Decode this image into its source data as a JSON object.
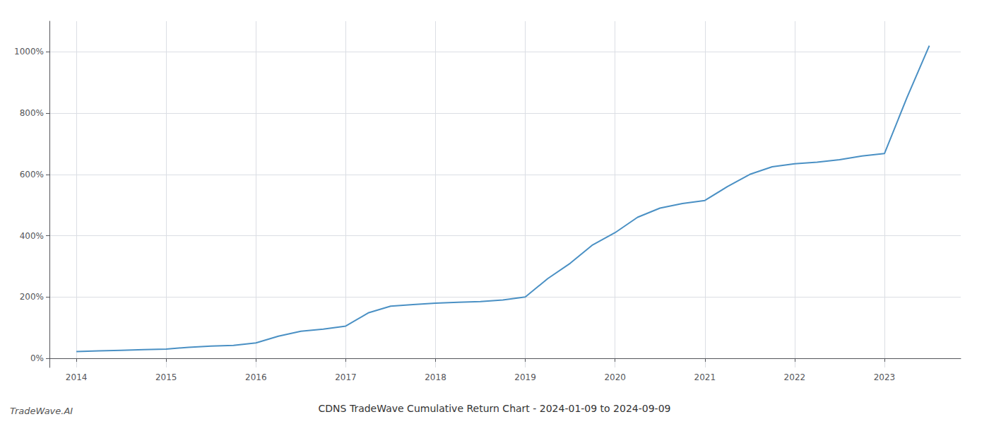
{
  "chart_data": {
    "type": "line",
    "title": "CDNS TradeWave Cumulative Return Chart - 2024-01-09 to 2024-09-09",
    "annotations": [
      "TradeWave.AI"
    ],
    "x": [
      2014.0,
      2014.25,
      2014.5,
      2014.75,
      2015.0,
      2015.25,
      2015.5,
      2015.75,
      2016.0,
      2016.25,
      2016.5,
      2016.75,
      2017.0,
      2017.25,
      2017.5,
      2017.75,
      2018.0,
      2018.25,
      2018.5,
      2018.75,
      2019.0,
      2019.25,
      2019.5,
      2019.75,
      2020.0,
      2020.25,
      2020.5,
      2020.75,
      2021.0,
      2021.25,
      2021.5,
      2021.75,
      2022.0,
      2022.25,
      2022.5,
      2022.75,
      2023.0,
      2023.25,
      2023.5
    ],
    "values": [
      22,
      24,
      26,
      28,
      30,
      36,
      40,
      42,
      50,
      72,
      88,
      95,
      105,
      148,
      170,
      175,
      180,
      183,
      185,
      190,
      200,
      260,
      310,
      370,
      410,
      460,
      490,
      505,
      515,
      560,
      600,
      625,
      635,
      640,
      648,
      660,
      668,
      850,
      1020
    ],
    "color": "#4a90c4",
    "xlim": [
      2013.7,
      2023.85
    ],
    "xticks": [
      2014,
      2015,
      2016,
      2017,
      2018,
      2019,
      2020,
      2021,
      2022,
      2023
    ],
    "ylim": [
      -30,
      1100
    ],
    "yticks": [
      {
        "value": 0,
        "label": "0%"
      },
      {
        "value": 200,
        "label": "200%"
      },
      {
        "value": 400,
        "label": "400%"
      },
      {
        "value": 600,
        "label": "600%"
      },
      {
        "value": 800,
        "label": "800%"
      },
      {
        "value": 1000,
        "label": "1000%"
      }
    ],
    "grid": true
  }
}
